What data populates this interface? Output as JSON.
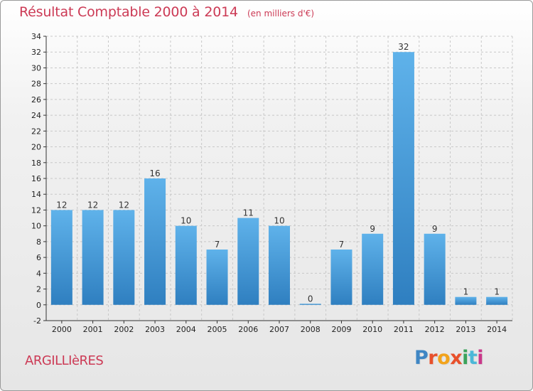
{
  "header": {
    "title": "Résultat Comptable 2000 à 2014",
    "subtitle": "(en milliers d'€)"
  },
  "footer": {
    "commune": "ARGILLIèRES",
    "brand_letters": [
      "P",
      "r",
      "o",
      "x",
      "i",
      "t",
      "i"
    ],
    "brand_colors": [
      "#3f86c4",
      "#e8502b",
      "#f2a31b",
      "#e8502b",
      "#3aa35a",
      "#4bb8d8",
      "#c9378a"
    ]
  },
  "colors": {
    "bar_top": "#5fb2ea",
    "bar_bottom": "#2f7fc0",
    "grid": "#c8c8c8",
    "axis": "#333333",
    "title": "#cc3a55"
  },
  "chart_data": {
    "type": "bar",
    "categories": [
      "2000",
      "2001",
      "2002",
      "2003",
      "2004",
      "2005",
      "2006",
      "2007",
      "2008",
      "2009",
      "2010",
      "2011",
      "2012",
      "2013",
      "2014"
    ],
    "values": [
      12,
      12,
      12,
      16,
      10,
      7,
      11,
      10,
      0,
      7,
      9,
      32,
      9,
      1,
      1
    ],
    "title": "Résultat Comptable 2000 à 2014",
    "subtitle": "(en milliers d'€)",
    "xlabel": "",
    "ylabel": "",
    "ylim": [
      -2,
      34
    ],
    "yticks": [
      -2,
      0,
      2,
      4,
      6,
      8,
      10,
      12,
      14,
      16,
      18,
      20,
      22,
      24,
      26,
      28,
      30,
      32,
      34
    ],
    "grid": true,
    "legend": "none"
  }
}
